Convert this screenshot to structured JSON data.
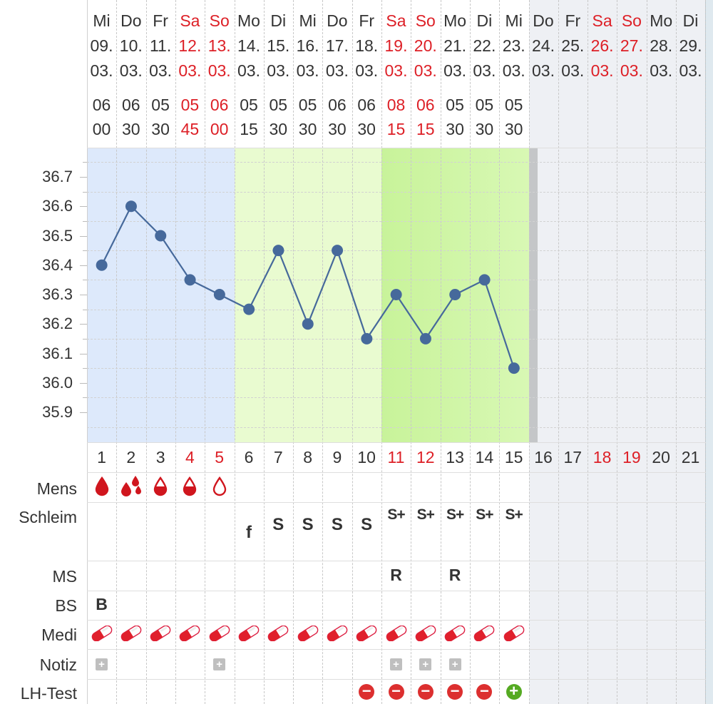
{
  "colors": {
    "phase_menses": "#dde9fb",
    "phase_fertile": "#e9fbd0",
    "phase_peak": "#ccf5a0",
    "future": "#eef0f4",
    "line": "#46699b",
    "weekend_text": "#dd1f26",
    "drop": "#d0161e",
    "lh_negative": "#dc2f2f",
    "lh_positive": "#55aa22"
  },
  "days": [
    {
      "wd": "Mi",
      "day": "09.",
      "month": "03.",
      "t1": "06",
      "t2": "00",
      "cycle": "1",
      "weekend": false
    },
    {
      "wd": "Do",
      "day": "10.",
      "month": "03.",
      "t1": "06",
      "t2": "30",
      "cycle": "2",
      "weekend": false
    },
    {
      "wd": "Fr",
      "day": "11.",
      "month": "03.",
      "t1": "05",
      "t2": "30",
      "cycle": "3",
      "weekend": false
    },
    {
      "wd": "Sa",
      "day": "12.",
      "month": "03.",
      "t1": "05",
      "t2": "45",
      "cycle": "4",
      "weekend": true
    },
    {
      "wd": "So",
      "day": "13.",
      "month": "03.",
      "t1": "06",
      "t2": "00",
      "cycle": "5",
      "weekend": true
    },
    {
      "wd": "Mo",
      "day": "14.",
      "month": "03.",
      "t1": "05",
      "t2": "15",
      "cycle": "6",
      "weekend": false
    },
    {
      "wd": "Di",
      "day": "15.",
      "month": "03.",
      "t1": "05",
      "t2": "30",
      "cycle": "7",
      "weekend": false
    },
    {
      "wd": "Mi",
      "day": "16.",
      "month": "03.",
      "t1": "05",
      "t2": "30",
      "cycle": "8",
      "weekend": false
    },
    {
      "wd": "Do",
      "day": "17.",
      "month": "03.",
      "t1": "06",
      "t2": "30",
      "cycle": "9",
      "weekend": false
    },
    {
      "wd": "Fr",
      "day": "18.",
      "month": "03.",
      "t1": "06",
      "t2": "30",
      "cycle": "10",
      "weekend": false
    },
    {
      "wd": "Sa",
      "day": "19.",
      "month": "03.",
      "t1": "08",
      "t2": "15",
      "cycle": "11",
      "weekend": true
    },
    {
      "wd": "So",
      "day": "20.",
      "month": "03.",
      "t1": "06",
      "t2": "15",
      "cycle": "12",
      "weekend": true
    },
    {
      "wd": "Mo",
      "day": "21.",
      "month": "03.",
      "t1": "05",
      "t2": "30",
      "cycle": "13",
      "weekend": false
    },
    {
      "wd": "Di",
      "day": "22.",
      "month": "03.",
      "t1": "05",
      "t2": "30",
      "cycle": "14",
      "weekend": false
    },
    {
      "wd": "Mi",
      "day": "23.",
      "month": "03.",
      "t1": "05",
      "t2": "30",
      "cycle": "15",
      "weekend": false
    },
    {
      "wd": "Do",
      "day": "24.",
      "month": "03.",
      "t1": "",
      "t2": "",
      "cycle": "16",
      "weekend": false
    },
    {
      "wd": "Fr",
      "day": "25.",
      "month": "03.",
      "t1": "",
      "t2": "",
      "cycle": "17",
      "weekend": false
    },
    {
      "wd": "Sa",
      "day": "26.",
      "month": "03.",
      "t1": "",
      "t2": "",
      "cycle": "18",
      "weekend": true
    },
    {
      "wd": "So",
      "day": "27.",
      "month": "03.",
      "t1": "",
      "t2": "",
      "cycle": "19",
      "weekend": true
    },
    {
      "wd": "Mo",
      "day": "28.",
      "month": "03.",
      "t1": "",
      "t2": "",
      "cycle": "20",
      "weekend": false
    },
    {
      "wd": "Di",
      "day": "29.",
      "month": "03.",
      "t1": "",
      "t2": "",
      "cycle": "21",
      "weekend": false
    }
  ],
  "chart_data": {
    "type": "line",
    "x": [
      1,
      2,
      3,
      4,
      5,
      6,
      7,
      8,
      9,
      10,
      11,
      12,
      13,
      14,
      15
    ],
    "series": [
      {
        "values": [
          36.4,
          36.6,
          36.5,
          36.35,
          36.3,
          36.25,
          36.45,
          36.2,
          36.45,
          36.15,
          36.3,
          36.15,
          36.3,
          36.35,
          36.05
        ]
      }
    ],
    "y_ticks": [
      "36.7",
      "36.6",
      "36.5",
      "36.4",
      "36.3",
      "36.2",
      "36.1",
      "36.0",
      "35.9"
    ],
    "ylim": [
      35.8,
      36.8
    ],
    "grid": true,
    "phases": [
      {
        "from_cycle_day": 1,
        "to_cycle_day": 5,
        "color": "#dde9fb"
      },
      {
        "from_cycle_day": 6,
        "to_cycle_day": 10,
        "color": "#e9fbd0"
      },
      {
        "from_cycle_day": 11,
        "to_cycle_day": 15,
        "color": "#ccf5a0"
      }
    ]
  },
  "rows": {
    "mens": {
      "label": "Mens",
      "values": [
        {
          "day": 1,
          "icon": "blood-drop-full-icon"
        },
        {
          "day": 2,
          "icon": "blood-drops-heavy-icon"
        },
        {
          "day": 3,
          "icon": "blood-drop-half-icon"
        },
        {
          "day": 4,
          "icon": "blood-drop-half-icon"
        },
        {
          "day": 5,
          "icon": "blood-drop-outline-icon"
        }
      ]
    },
    "schleim": {
      "label": "Schleim",
      "values": [
        {
          "day": 6,
          "text": "f"
        },
        {
          "day": 7,
          "text": "S"
        },
        {
          "day": 8,
          "text": "S"
        },
        {
          "day": 9,
          "text": "S"
        },
        {
          "day": 10,
          "text": "S"
        },
        {
          "day": 11,
          "text": "S+"
        },
        {
          "day": 12,
          "text": "S+"
        },
        {
          "day": 13,
          "text": "S+"
        },
        {
          "day": 14,
          "text": "S+"
        },
        {
          "day": 15,
          "text": "S+"
        }
      ]
    },
    "ms": {
      "label": "MS",
      "values": [
        {
          "day": 11,
          "text": "R"
        },
        {
          "day": 13,
          "text": "R"
        }
      ]
    },
    "bs": {
      "label": "BS",
      "values": [
        {
          "day": 1,
          "text": "B"
        }
      ]
    },
    "medi": {
      "label": "Medi",
      "icon": "pill-capsule-icon",
      "days": [
        1,
        2,
        3,
        4,
        5,
        6,
        7,
        8,
        9,
        10,
        11,
        12,
        13,
        14,
        15
      ]
    },
    "notiz": {
      "label": "Notiz",
      "icon": "note-plus-icon",
      "symbol": "+",
      "days": [
        1,
        5,
        11,
        12,
        13
      ]
    },
    "lh": {
      "label": "LH-Test",
      "values": [
        {
          "day": 10,
          "result": "negative",
          "symbol": "−"
        },
        {
          "day": 11,
          "result": "negative",
          "symbol": "−"
        },
        {
          "day": 12,
          "result": "negative",
          "symbol": "−"
        },
        {
          "day": 13,
          "result": "negative",
          "symbol": "−"
        },
        {
          "day": 14,
          "result": "negative",
          "symbol": "−"
        },
        {
          "day": 15,
          "result": "positive",
          "symbol": "+"
        }
      ]
    }
  }
}
